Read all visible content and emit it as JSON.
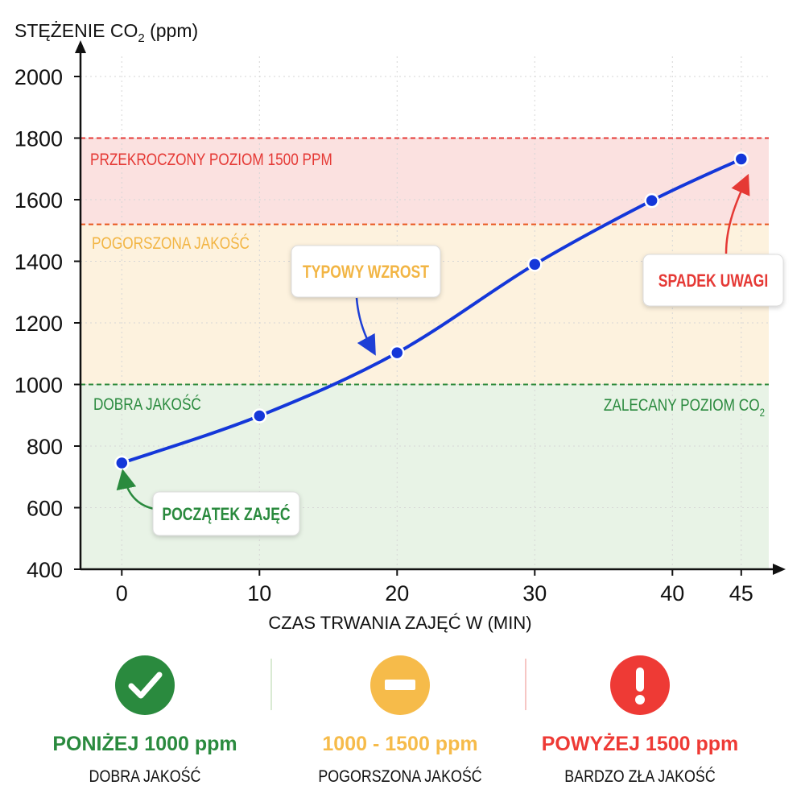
{
  "chart_data": {
    "type": "line",
    "ylabel_main": "STĘŻENIE CO",
    "ylabel_sub": "2",
    "ylabel_unit": " (ppm)",
    "xlabel": "CZAS TRWANIA ZAJĘĆ W (MIN)",
    "xlim": [
      -3,
      47
    ],
    "ylim": [
      400,
      2000
    ],
    "yticks": [
      400,
      600,
      800,
      1000,
      1200,
      1400,
      1600,
      1800,
      2000
    ],
    "xticks": [
      0,
      10,
      20,
      30,
      40,
      45
    ],
    "series": [
      {
        "name": "CO2",
        "color": "#1437d9",
        "x": [
          0,
          10,
          20,
          30,
          38.5,
          45
        ],
        "y": [
          745,
          898,
          1103,
          1390,
          1597,
          1732
        ]
      }
    ],
    "zones": [
      {
        "from": 400,
        "to": 1000,
        "color": "#e8f3e6"
      },
      {
        "from": 1000,
        "to": 1520,
        "color": "#fdf2de"
      },
      {
        "from": 1520,
        "to": 1800,
        "color": "#fbe1e0"
      }
    ],
    "threshold_lines": [
      {
        "y": 1000,
        "color": "#2d8a3a"
      },
      {
        "y": 1520,
        "color": "#e8561e"
      },
      {
        "y": 1800,
        "color": "#e53935"
      }
    ],
    "zone_labels": {
      "exceeded": "PRZEKROCZONY POZIOM 1500 PPM",
      "degraded": "POGORSZONA JAKOŚĆ",
      "good": "DOBRA JAKOŚĆ",
      "recommended_main": "ZALECANY POZIOM CO",
      "recommended_sub": "2"
    },
    "annotations": [
      {
        "text": "TYPOWY WZROST",
        "color": "#f2b544",
        "target_x": 18.5,
        "target_y": 1110
      },
      {
        "text": "SPADEK UWAGI",
        "color": "#e53935",
        "target_x": 45,
        "target_y": 1755
      },
      {
        "text": "POCZĄTEK ZAJĘĆ",
        "color": "#2a8a3e",
        "target_x": 0.3,
        "target_y": 710
      }
    ]
  },
  "legend": [
    {
      "title": "PONIŻEJ 1000 ppm",
      "subtitle": "DOBRA JAKOŚĆ",
      "color": "#2a8a3e",
      "icon": "check-circle-icon"
    },
    {
      "title": "1000 - 1500 ppm",
      "subtitle": "POGORSZONA JAKOŚĆ",
      "color": "#f6bb4a",
      "icon": "minus-circle-icon"
    },
    {
      "title": "POWYŻEJ 1500 ppm",
      "subtitle": "BARDZO ZŁA JAKOŚĆ",
      "color": "#ee3a35",
      "icon": "exclamation-circle-icon"
    }
  ]
}
